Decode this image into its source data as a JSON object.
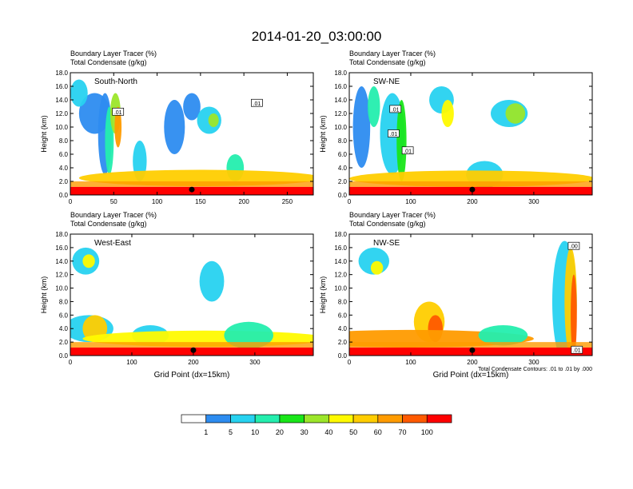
{
  "title": "2014-01-20_03:00:00",
  "panel_subtitles": [
    "Boundary Layer Tracer    (%)",
    "Total Condensate    (g/kg)"
  ],
  "ylabel": "Height (km)",
  "xlabel": "Grid Point (dx=15km)",
  "contour_note": "Total Condensate Contours: .01 to .01 by .000",
  "colors": [
    "#ffffff",
    "#2d8cf0",
    "#27d2f0",
    "#24eeae",
    "#19e619",
    "#9ce62a",
    "#fffa00",
    "#ffcd00",
    "#ff9b00",
    "#ff5a00",
    "#ff0000"
  ],
  "colorbar": {
    "labels": [
      "1",
      "5",
      "10",
      "20",
      "30",
      "40",
      "50",
      "60",
      "70",
      "100"
    ]
  },
  "chart_data": [
    {
      "type": "heatmap",
      "panel_label": "South-North",
      "title": "Boundary Layer Tracer    (%)",
      "subtitle": "Total Condensate    (g/kg)",
      "ylabel": "Height (km)",
      "xlim": [
        0,
        280
      ],
      "ylim": [
        0,
        18
      ],
      "xticks": [
        "0",
        "50",
        "100",
        "150",
        "200",
        "250"
      ],
      "yticks": [
        "0.0",
        "2.0",
        "4.0",
        "6.0",
        "8.0",
        "10.0",
        "12.0",
        "14.0",
        "16.0",
        "18.0"
      ],
      "contour_labels": [
        ".01",
        ".01"
      ],
      "marker_x": 140
    },
    {
      "type": "heatmap",
      "panel_label": "SW-NE",
      "title": "Boundary Layer Tracer    (%)",
      "subtitle": "Total Condensate    (g/kg)",
      "ylabel": "Height (km)",
      "xlim": [
        0,
        395
      ],
      "ylim": [
        0,
        18
      ],
      "xticks": [
        "0",
        "100",
        "200",
        "300"
      ],
      "yticks": [
        "0.0",
        "2.0",
        "4.0",
        "6.0",
        "8.0",
        "10.0",
        "12.0",
        "14.0",
        "16.0",
        "18.0"
      ],
      "contour_labels": [
        ".01",
        ".01",
        ".01"
      ],
      "marker_x": 200
    },
    {
      "type": "heatmap",
      "panel_label": "West-East",
      "title": "Boundary Layer Tracer    (%)",
      "subtitle": "Total Condensate    (g/kg)",
      "ylabel": "Height (km)",
      "xlabel": "Grid Point (dx=15km)",
      "xlim": [
        0,
        395
      ],
      "ylim": [
        0,
        18
      ],
      "xticks": [
        "0",
        "100",
        "200",
        "300"
      ],
      "yticks": [
        "0.0",
        "2.0",
        "4.0",
        "6.0",
        "8.0",
        "10.0",
        "12.0",
        "14.0",
        "16.0",
        "18.0"
      ],
      "contour_labels": [],
      "marker_x": 200
    },
    {
      "type": "heatmap",
      "panel_label": "NW-SE",
      "title": "Boundary Layer Tracer    (%)",
      "subtitle": "Total Condensate    (g/kg)",
      "ylabel": "Height (km)",
      "xlabel": "Grid Point (dx=15km)",
      "xlim": [
        0,
        395
      ],
      "ylim": [
        0,
        18
      ],
      "xticks": [
        "0",
        "100",
        "200",
        "300"
      ],
      "yticks": [
        "0.0",
        "2.0",
        "4.0",
        "6.0",
        "8.0",
        "10.0",
        "12.0",
        "14.0",
        "16.0",
        "18.0"
      ],
      "contour_labels": [
        ".00",
        ".01"
      ],
      "marker_x": 200
    }
  ]
}
